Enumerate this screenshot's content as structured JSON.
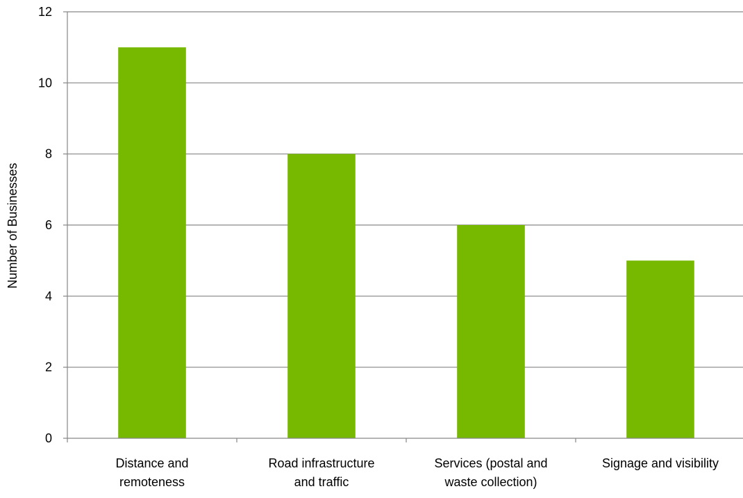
{
  "chart_data": {
    "type": "bar",
    "title": "",
    "xlabel": "",
    "ylabel": "Number of Businesses",
    "categories": [
      [
        "Distance and",
        "remoteness"
      ],
      [
        "Road infrastructure",
        "and traffic"
      ],
      [
        "Services (postal and",
        "waste collection)"
      ],
      [
        "Signage and visibility"
      ]
    ],
    "values": [
      11,
      8,
      6,
      5
    ],
    "ylim": [
      0,
      12
    ],
    "yticks": [
      0,
      2,
      4,
      6,
      8,
      10,
      12
    ],
    "grid": true,
    "legend": "none",
    "colors": {
      "bar": "#77b800",
      "grid": "#868686",
      "axis": "#868686"
    }
  }
}
